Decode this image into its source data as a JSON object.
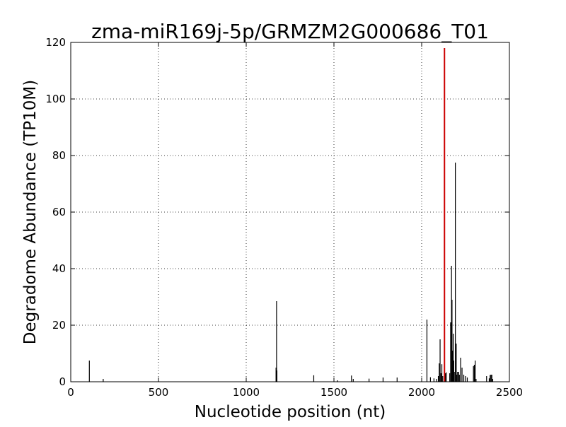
{
  "chart_data": {
    "type": "bar",
    "title": "zma-miR169j-5p/GRMZM2G000686_T01",
    "xlabel": "Nucleotide position (nt)",
    "ylabel": "Degradome Abundance (TP10M)",
    "xlim": [
      0,
      2500
    ],
    "ylim": [
      0,
      120
    ],
    "xticks": [
      0,
      500,
      1000,
      1500,
      2000,
      2500
    ],
    "yticks": [
      0,
      20,
      40,
      60,
      80,
      100,
      120
    ],
    "grid": true,
    "colors": {
      "series": "#000000",
      "highlight": "#cc0000"
    },
    "series": [
      {
        "x": [
          106,
          185,
          1170,
          1173,
          1175,
          1385,
          1520,
          1600,
          1610,
          1700,
          1780,
          1860,
          2030,
          2050,
          2070,
          2085,
          2095,
          2100,
          2105,
          2110,
          2115,
          2120,
          2135,
          2140,
          2160,
          2165,
          2170,
          2173,
          2176,
          2180,
          2183,
          2186,
          2192,
          2197,
          2200,
          2205,
          2210,
          2215,
          2222,
          2230,
          2240,
          2250,
          2260,
          2295,
          2300,
          2305,
          2310,
          2370,
          2385,
          2390,
          2395,
          2400,
          2405
        ],
        "y": [
          7.5,
          1,
          5,
          28.5,
          4,
          2.3,
          0.5,
          2.2,
          1,
          1.1,
          1.5,
          1.5,
          22,
          1.6,
          1.2,
          1,
          2,
          6.5,
          15,
          3,
          6.2,
          2,
          3,
          3.3,
          3,
          21,
          41,
          29,
          11,
          17,
          7.5,
          3.5,
          77.5,
          13.5,
          2.5,
          3.5,
          3.5,
          2.5,
          8.5,
          5,
          2.5,
          2,
          1.5,
          5.5,
          6,
          7.5,
          1,
          2,
          1.2,
          2.4,
          2.5,
          2.5,
          1
        ]
      }
    ],
    "highlight": {
      "x": 2130,
      "y": 118
    }
  }
}
